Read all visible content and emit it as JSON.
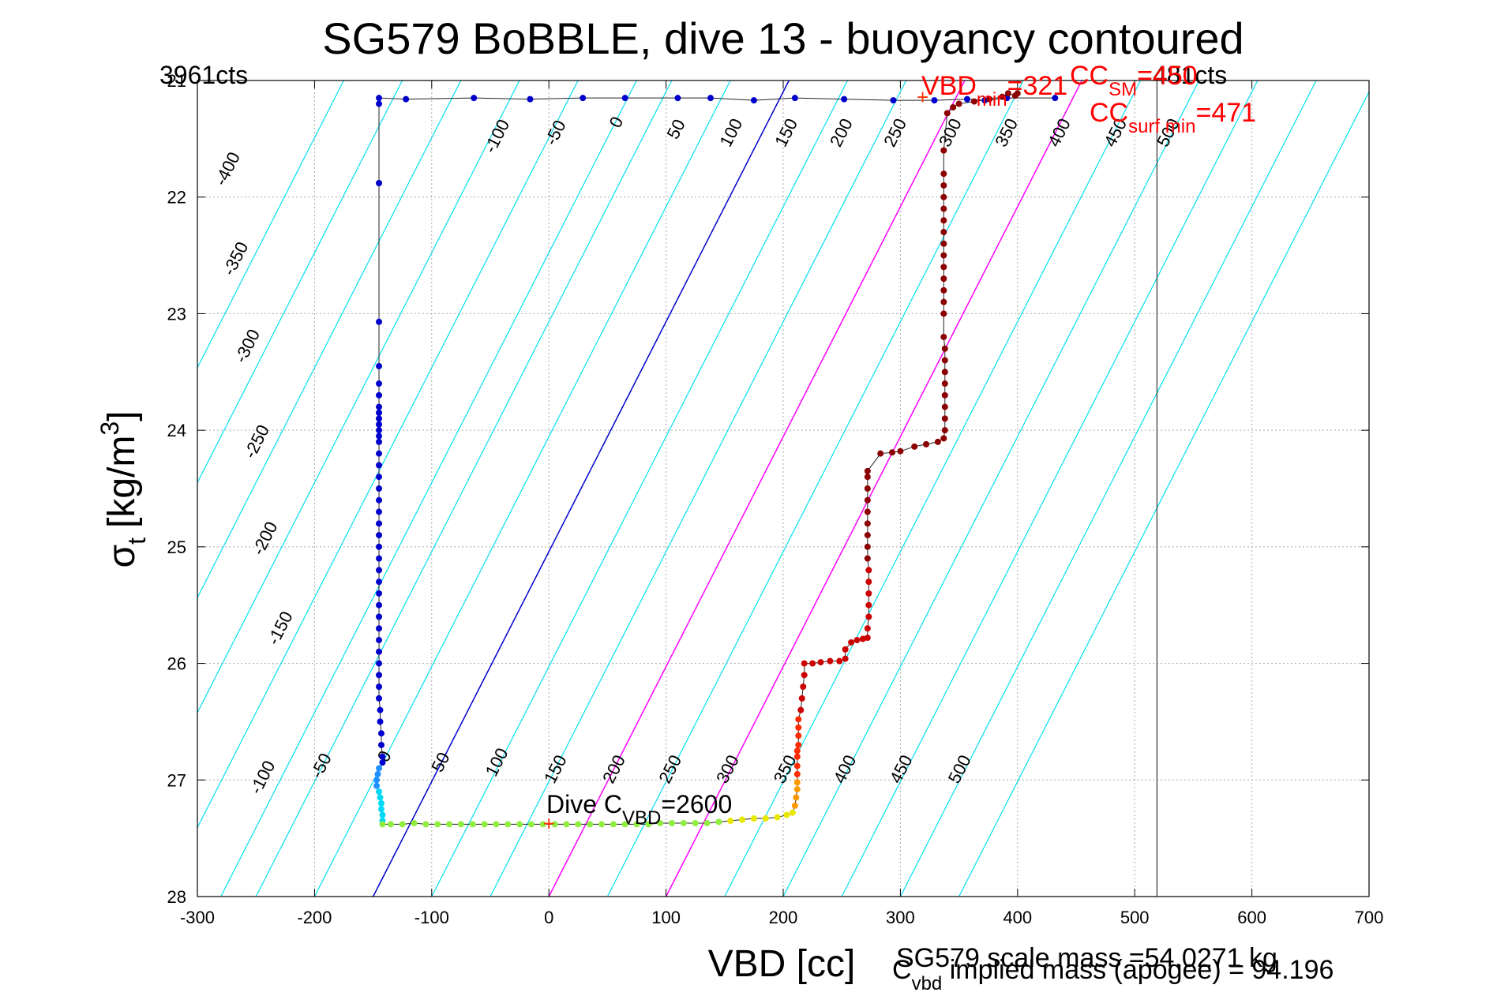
{
  "chart_data": {
    "type": "scatter",
    "title": "SG579 BoBBLE, dive 13 - buoyancy contoured",
    "xlabel": "VBD [cc]",
    "ylabel": "σ",
    "ylabel_sub": "t",
    "ylabel_unit": "[kg/m",
    "ylabel_sup": "3",
    "ylabel_close": "]",
    "xlim": [
      -300,
      700
    ],
    "ylim": [
      21,
      28
    ],
    "y_reversed": true,
    "grid": true,
    "x_ticks": [
      -300,
      -200,
      -100,
      0,
      100,
      200,
      300,
      400,
      500,
      600,
      700
    ],
    "x_tick_labels": [
      "-300",
      "-200",
      "-100",
      "0",
      "100",
      "200",
      "300",
      "400",
      "500",
      "600",
      "700"
    ],
    "y_ticks": [
      21,
      22,
      23,
      24,
      25,
      26,
      27,
      28
    ],
    "y_tick_labels": [
      "21",
      "22",
      "23",
      "24",
      "25",
      "26",
      "27",
      "28"
    ],
    "contours": {
      "values": [
        -400,
        -350,
        -300,
        -250,
        -200,
        -150,
        -100,
        -50,
        0,
        50,
        100,
        150,
        200,
        250,
        300,
        350,
        400,
        450,
        500
      ],
      "bottom_x": [
        -530,
        -480,
        -430,
        -380,
        -330,
        -280,
        -250,
        -200,
        -150,
        -100,
        -50,
        0,
        50,
        100,
        150,
        200,
        250,
        300,
        350
      ],
      "slope_vbd_per_sigma": 50.7,
      "line_color": "#00e0f0",
      "zero_line_color": "#0000cc",
      "highlight_values": [
        150,
        250
      ],
      "highlight_color": "#ff00ff",
      "labels_upper": [
        {
          "text": "-400",
          "x": -270,
          "y": 21.78
        },
        {
          "text": "-350",
          "x": -263,
          "y": 22.55
        },
        {
          "text": "-300",
          "x": -253,
          "y": 23.3
        },
        {
          "text": "-250",
          "x": -245,
          "y": 24.12
        },
        {
          "text": "-200",
          "x": -238,
          "y": 24.95
        },
        {
          "text": "-150",
          "x": -225,
          "y": 25.72
        },
        {
          "text": "-100",
          "x": -40,
          "y": 21.5
        },
        {
          "text": "-50",
          "x": 10,
          "y": 21.47
        },
        {
          "text": "0",
          "x": 62,
          "y": 21.38
        },
        {
          "text": "50",
          "x": 113,
          "y": 21.44
        },
        {
          "text": "100",
          "x": 160,
          "y": 21.47
        },
        {
          "text": "150",
          "x": 207,
          "y": 21.47
        },
        {
          "text": "200",
          "x": 254,
          "y": 21.47
        },
        {
          "text": "250",
          "x": 300,
          "y": 21.47
        },
        {
          "text": "300",
          "x": 347,
          "y": 21.47
        },
        {
          "text": "350",
          "x": 395,
          "y": 21.47
        },
        {
          "text": "400",
          "x": 440,
          "y": 21.47
        },
        {
          "text": "450",
          "x": 488,
          "y": 21.47
        },
        {
          "text": "500",
          "x": 533,
          "y": 21.47
        }
      ],
      "labels_lower": [
        {
          "text": "-100",
          "x": -240,
          "y": 27.0
        },
        {
          "text": "-50",
          "x": -190,
          "y": 26.9
        },
        {
          "text": "0",
          "x": -136,
          "y": 26.82
        },
        {
          "text": "50",
          "x": -88,
          "y": 26.87
        },
        {
          "text": "100",
          "x": -40,
          "y": 26.87
        },
        {
          "text": "150",
          "x": 10,
          "y": 26.93
        },
        {
          "text": "200",
          "x": 60,
          "y": 26.93
        },
        {
          "text": "250",
          "x": 108,
          "y": 26.93
        },
        {
          "text": "300",
          "x": 157,
          "y": 26.93
        },
        {
          "text": "350",
          "x": 206,
          "y": 26.93
        },
        {
          "text": "400",
          "x": 257,
          "y": 26.93
        },
        {
          "text": "450",
          "x": 305,
          "y": 26.93
        },
        {
          "text": "500",
          "x": 355,
          "y": 26.93
        }
      ]
    },
    "vertical_line_x": 519,
    "series": [
      {
        "color": "#0000cc",
        "points": [
          [
            -145,
            21.15
          ],
          [
            -122,
            21.16
          ],
          [
            -64,
            21.15
          ],
          [
            -16,
            21.16
          ],
          [
            29,
            21.15
          ],
          [
            65,
            21.15
          ],
          [
            110,
            21.15
          ],
          [
            138,
            21.15
          ],
          [
            175,
            21.17
          ],
          [
            210,
            21.15
          ],
          [
            252,
            21.16
          ],
          [
            294,
            21.17
          ],
          [
            329,
            21.17
          ],
          [
            357,
            21.16
          ],
          [
            372,
            21.17
          ],
          [
            391,
            21.15
          ],
          [
            432,
            21.15
          ],
          [
            -145,
            21.2
          ],
          [
            -145,
            21.88
          ],
          [
            -145,
            23.07
          ],
          [
            -145,
            23.45
          ],
          [
            -145,
            23.6
          ],
          [
            -145,
            23.7
          ],
          [
            -145,
            23.8
          ],
          [
            -145,
            23.85
          ],
          [
            -145,
            23.9
          ],
          [
            -145,
            23.95
          ],
          [
            -145,
            24.0
          ],
          [
            -145,
            24.05
          ],
          [
            -145,
            24.1
          ],
          [
            -145,
            24.2
          ],
          [
            -145,
            24.3
          ],
          [
            -145,
            24.4
          ],
          [
            -145,
            24.5
          ],
          [
            -145,
            24.6
          ],
          [
            -145,
            24.7
          ],
          [
            -145,
            24.8
          ],
          [
            -145,
            24.9
          ],
          [
            -145,
            25.0
          ],
          [
            -145,
            25.1
          ],
          [
            -145,
            25.2
          ],
          [
            -145,
            25.3
          ],
          [
            -145,
            25.4
          ],
          [
            -145,
            25.5
          ],
          [
            -145,
            25.6
          ],
          [
            -145,
            25.7
          ],
          [
            -145,
            25.8
          ],
          [
            -145,
            25.9
          ],
          [
            -145,
            26.0
          ],
          [
            -145,
            26.1
          ],
          [
            -145,
            26.2
          ],
          [
            -145,
            26.3
          ],
          [
            -144,
            26.4
          ],
          [
            -144,
            26.5
          ],
          [
            -143,
            26.6
          ],
          [
            -143,
            26.7
          ],
          [
            -142,
            26.8
          ],
          [
            -142,
            26.85
          ]
        ]
      },
      {
        "color": "#1e90ff",
        "points": [
          [
            -145,
            26.9
          ],
          [
            -146,
            26.95
          ],
          [
            -147,
            27.0
          ],
          [
            -147,
            27.05
          ]
        ]
      },
      {
        "color": "#00d8f8",
        "points": [
          [
            -145,
            27.1
          ],
          [
            -144,
            27.15
          ],
          [
            -143,
            27.2
          ],
          [
            -143,
            27.25
          ],
          [
            -142,
            27.3
          ],
          [
            -142,
            27.35
          ]
        ]
      },
      {
        "color": "#90ee40",
        "points": [
          [
            -142,
            27.38
          ],
          [
            -135,
            27.38
          ],
          [
            -125,
            27.38
          ],
          [
            -115,
            27.37
          ],
          [
            -105,
            27.38
          ],
          [
            -95,
            27.38
          ],
          [
            -85,
            27.38
          ],
          [
            -75,
            27.38
          ],
          [
            -65,
            27.38
          ],
          [
            -55,
            27.38
          ],
          [
            -45,
            27.38
          ],
          [
            -35,
            27.38
          ],
          [
            -25,
            27.38
          ],
          [
            -15,
            27.38
          ],
          [
            -5,
            27.38
          ],
          [
            5,
            27.38
          ],
          [
            15,
            27.38
          ],
          [
            25,
            27.38
          ],
          [
            35,
            27.38
          ],
          [
            45,
            27.38
          ],
          [
            55,
            27.38
          ],
          [
            65,
            27.38
          ],
          [
            75,
            27.38
          ],
          [
            85,
            27.38
          ],
          [
            95,
            27.37
          ],
          [
            105,
            27.37
          ],
          [
            115,
            27.37
          ],
          [
            125,
            27.37
          ],
          [
            135,
            27.37
          ],
          [
            145,
            27.36
          ]
        ]
      },
      {
        "color": "#e8e800",
        "points": [
          [
            155,
            27.35
          ],
          [
            165,
            27.34
          ],
          [
            175,
            27.33
          ],
          [
            185,
            27.33
          ],
          [
            195,
            27.32
          ],
          [
            203,
            27.3
          ],
          [
            208,
            27.28
          ]
        ]
      },
      {
        "color": "#ff9900",
        "points": [
          [
            210,
            27.22
          ],
          [
            211,
            27.15
          ],
          [
            212,
            27.08
          ],
          [
            212,
            27.02
          ]
        ]
      },
      {
        "color": "#ff2a00",
        "points": [
          [
            212,
            26.95
          ],
          [
            212,
            26.88
          ],
          [
            212,
            26.8
          ],
          [
            212,
            26.75
          ],
          [
            213,
            26.7
          ],
          [
            213,
            26.62
          ],
          [
            213,
            26.55
          ],
          [
            213,
            26.48
          ]
        ]
      },
      {
        "color": "#cc0000",
        "points": [
          [
            215,
            26.4
          ],
          [
            216,
            26.3
          ],
          [
            217,
            26.2
          ],
          [
            218,
            26.1
          ],
          [
            218,
            26.0
          ],
          [
            225,
            26.0
          ],
          [
            232,
            25.99
          ],
          [
            240,
            25.98
          ],
          [
            248,
            25.98
          ],
          [
            253,
            25.96
          ],
          [
            253,
            25.88
          ],
          [
            258,
            25.82
          ],
          [
            263,
            25.8
          ],
          [
            268,
            25.79
          ],
          [
            272,
            25.78
          ],
          [
            272,
            25.7
          ],
          [
            273,
            25.6
          ],
          [
            273,
            25.5
          ],
          [
            273,
            25.4
          ],
          [
            273,
            25.3
          ],
          [
            273,
            25.2
          ]
        ]
      },
      {
        "color": "#8b0000",
        "points": [
          [
            272,
            25.1
          ],
          [
            272,
            25.0
          ],
          [
            272,
            24.9
          ],
          [
            272,
            24.8
          ],
          [
            272,
            24.7
          ],
          [
            272,
            24.6
          ],
          [
            272,
            24.5
          ],
          [
            272,
            24.4
          ],
          [
            272,
            24.35
          ],
          [
            283,
            24.2
          ],
          [
            293,
            24.19
          ],
          [
            300,
            24.18
          ],
          [
            312,
            24.14
          ],
          [
            322,
            24.12
          ],
          [
            332,
            24.1
          ],
          [
            337,
            24.07
          ],
          [
            338,
            24.0
          ],
          [
            338,
            23.9
          ],
          [
            338,
            23.8
          ],
          [
            338,
            23.7
          ],
          [
            338,
            23.6
          ],
          [
            338,
            23.5
          ],
          [
            338,
            23.4
          ],
          [
            338,
            23.3
          ],
          [
            337,
            23.2
          ],
          [
            337,
            23.0
          ],
          [
            337,
            22.9
          ],
          [
            337,
            22.8
          ],
          [
            337,
            22.7
          ],
          [
            337,
            22.6
          ],
          [
            337,
            22.5
          ],
          [
            337,
            22.4
          ],
          [
            337,
            22.3
          ],
          [
            337,
            22.2
          ],
          [
            337,
            22.1
          ],
          [
            337,
            22.0
          ],
          [
            337,
            21.9
          ],
          [
            337,
            21.8
          ],
          [
            337,
            21.6
          ],
          [
            340,
            21.28
          ],
          [
            345,
            21.23
          ],
          [
            350,
            21.2
          ],
          [
            363,
            21.18
          ],
          [
            376,
            21.16
          ],
          [
            387,
            21.14
          ],
          [
            392,
            21.11
          ],
          [
            398,
            21.13
          ],
          [
            400,
            21.11
          ]
        ]
      }
    ],
    "markers": [
      {
        "label": "+",
        "x": 319,
        "y": 21.15,
        "color": "#ff3300"
      },
      {
        "label": "+",
        "x": 0,
        "y": 27.38,
        "color": "#ff3300"
      }
    ],
    "annotations": {
      "left_counts": "3961cts",
      "right_counts": "481cts",
      "vbd_min_main": "VBD",
      "vbd_min_sub": "min",
      "vbd_min_val": "=321",
      "cc_sm_main": "CC",
      "cc_sm_sub": "SM",
      "cc_sm_val": "=450",
      "cc_surf_main": "CC",
      "cc_surf_sub": "surf min",
      "cc_surf_val": "=471",
      "dive_cvbd_main": "Dive C",
      "dive_cvbd_sub": "VBD",
      "dive_cvbd_val": "=2600",
      "scale_mass": "SG579 scale mass =54.0271 kg",
      "implied_main": "C",
      "implied_sub": "vbd",
      "implied_val": " implied mass (apogee) = 94.196"
    }
  }
}
